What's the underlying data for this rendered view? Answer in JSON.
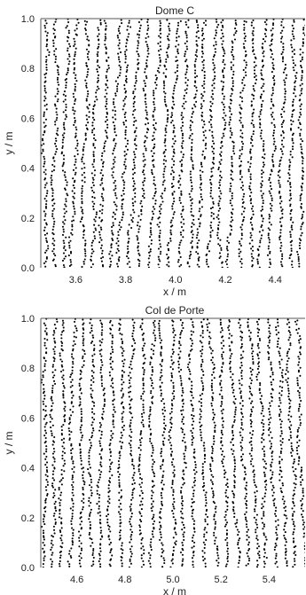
{
  "chart_data": [
    {
      "type": "scatter",
      "title": "Dome C",
      "xlabel": "x / m",
      "ylabel": "y / m",
      "xlim": [
        3.46,
        4.52
      ],
      "ylim": [
        0.0,
        1.0
      ],
      "xticks": [
        "3.6",
        "3.8",
        "4.0",
        "4.2",
        "4.4"
      ],
      "xtick_values": [
        3.6,
        3.8,
        4.0,
        4.2,
        4.4
      ],
      "yticks": [
        "0.0",
        "0.2",
        "0.4",
        "0.6",
        "0.8",
        "1.0"
      ],
      "ytick_values": [
        0.0,
        0.2,
        0.4,
        0.6,
        0.8,
        1.0
      ],
      "grid": false,
      "marker_color": "#000000",
      "trace_x_at_bottom": [
        3.475,
        3.51,
        3.55,
        3.585,
        3.625,
        3.665,
        3.7,
        3.74,
        3.775,
        3.815,
        3.855,
        3.895,
        3.935,
        3.975,
        4.015,
        4.055,
        4.095,
        4.135,
        4.175,
        4.215,
        4.26,
        4.3,
        4.34,
        4.38,
        4.42,
        4.46,
        4.5
      ],
      "trace_x_at_top": [
        3.48,
        3.525,
        3.565,
        3.605,
        3.65,
        3.69,
        3.73,
        3.775,
        3.815,
        3.855,
        3.895,
        3.935,
        3.975,
        4.01,
        4.045,
        4.085,
        4.12,
        4.16,
        4.195,
        4.235,
        4.275,
        4.315,
        4.355,
        4.395,
        4.435,
        4.475,
        4.51
      ]
    },
    {
      "type": "scatter",
      "title": "Col de Porte",
      "xlabel": "x / m",
      "ylabel": "y / m",
      "xlim": [
        4.45,
        5.55
      ],
      "ylim": [
        0.0,
        1.0
      ],
      "xticks": [
        "4.6",
        "4.8",
        "5.0",
        "5.2",
        "5.4"
      ],
      "xtick_values": [
        4.6,
        4.8,
        5.0,
        5.2,
        5.4
      ],
      "yticks": [
        "0.0",
        "0.2",
        "0.4",
        "0.6",
        "0.8",
        "1.0"
      ],
      "ytick_values": [
        0.0,
        0.2,
        0.4,
        0.6,
        0.8,
        1.0
      ],
      "grid": false,
      "marker_color": "#000000",
      "trace_x_at_bottom": [
        4.465,
        4.5,
        4.535,
        4.575,
        4.615,
        4.655,
        4.695,
        4.735,
        4.78,
        4.825,
        4.865,
        4.91,
        4.955,
        5.0,
        5.045,
        5.09,
        5.135,
        5.18,
        5.225,
        5.27,
        5.31,
        5.35,
        5.39,
        5.43,
        5.47,
        5.51,
        5.545
      ],
      "trace_x_at_top": [
        4.47,
        4.505,
        4.545,
        4.585,
        4.625,
        4.665,
        4.705,
        4.75,
        4.79,
        4.83,
        4.875,
        4.915,
        4.955,
        4.995,
        5.035,
        5.075,
        5.115,
        5.155,
        5.195,
        5.235,
        5.275,
        5.315,
        5.355,
        5.395,
        5.435,
        5.475,
        5.515
      ]
    }
  ]
}
